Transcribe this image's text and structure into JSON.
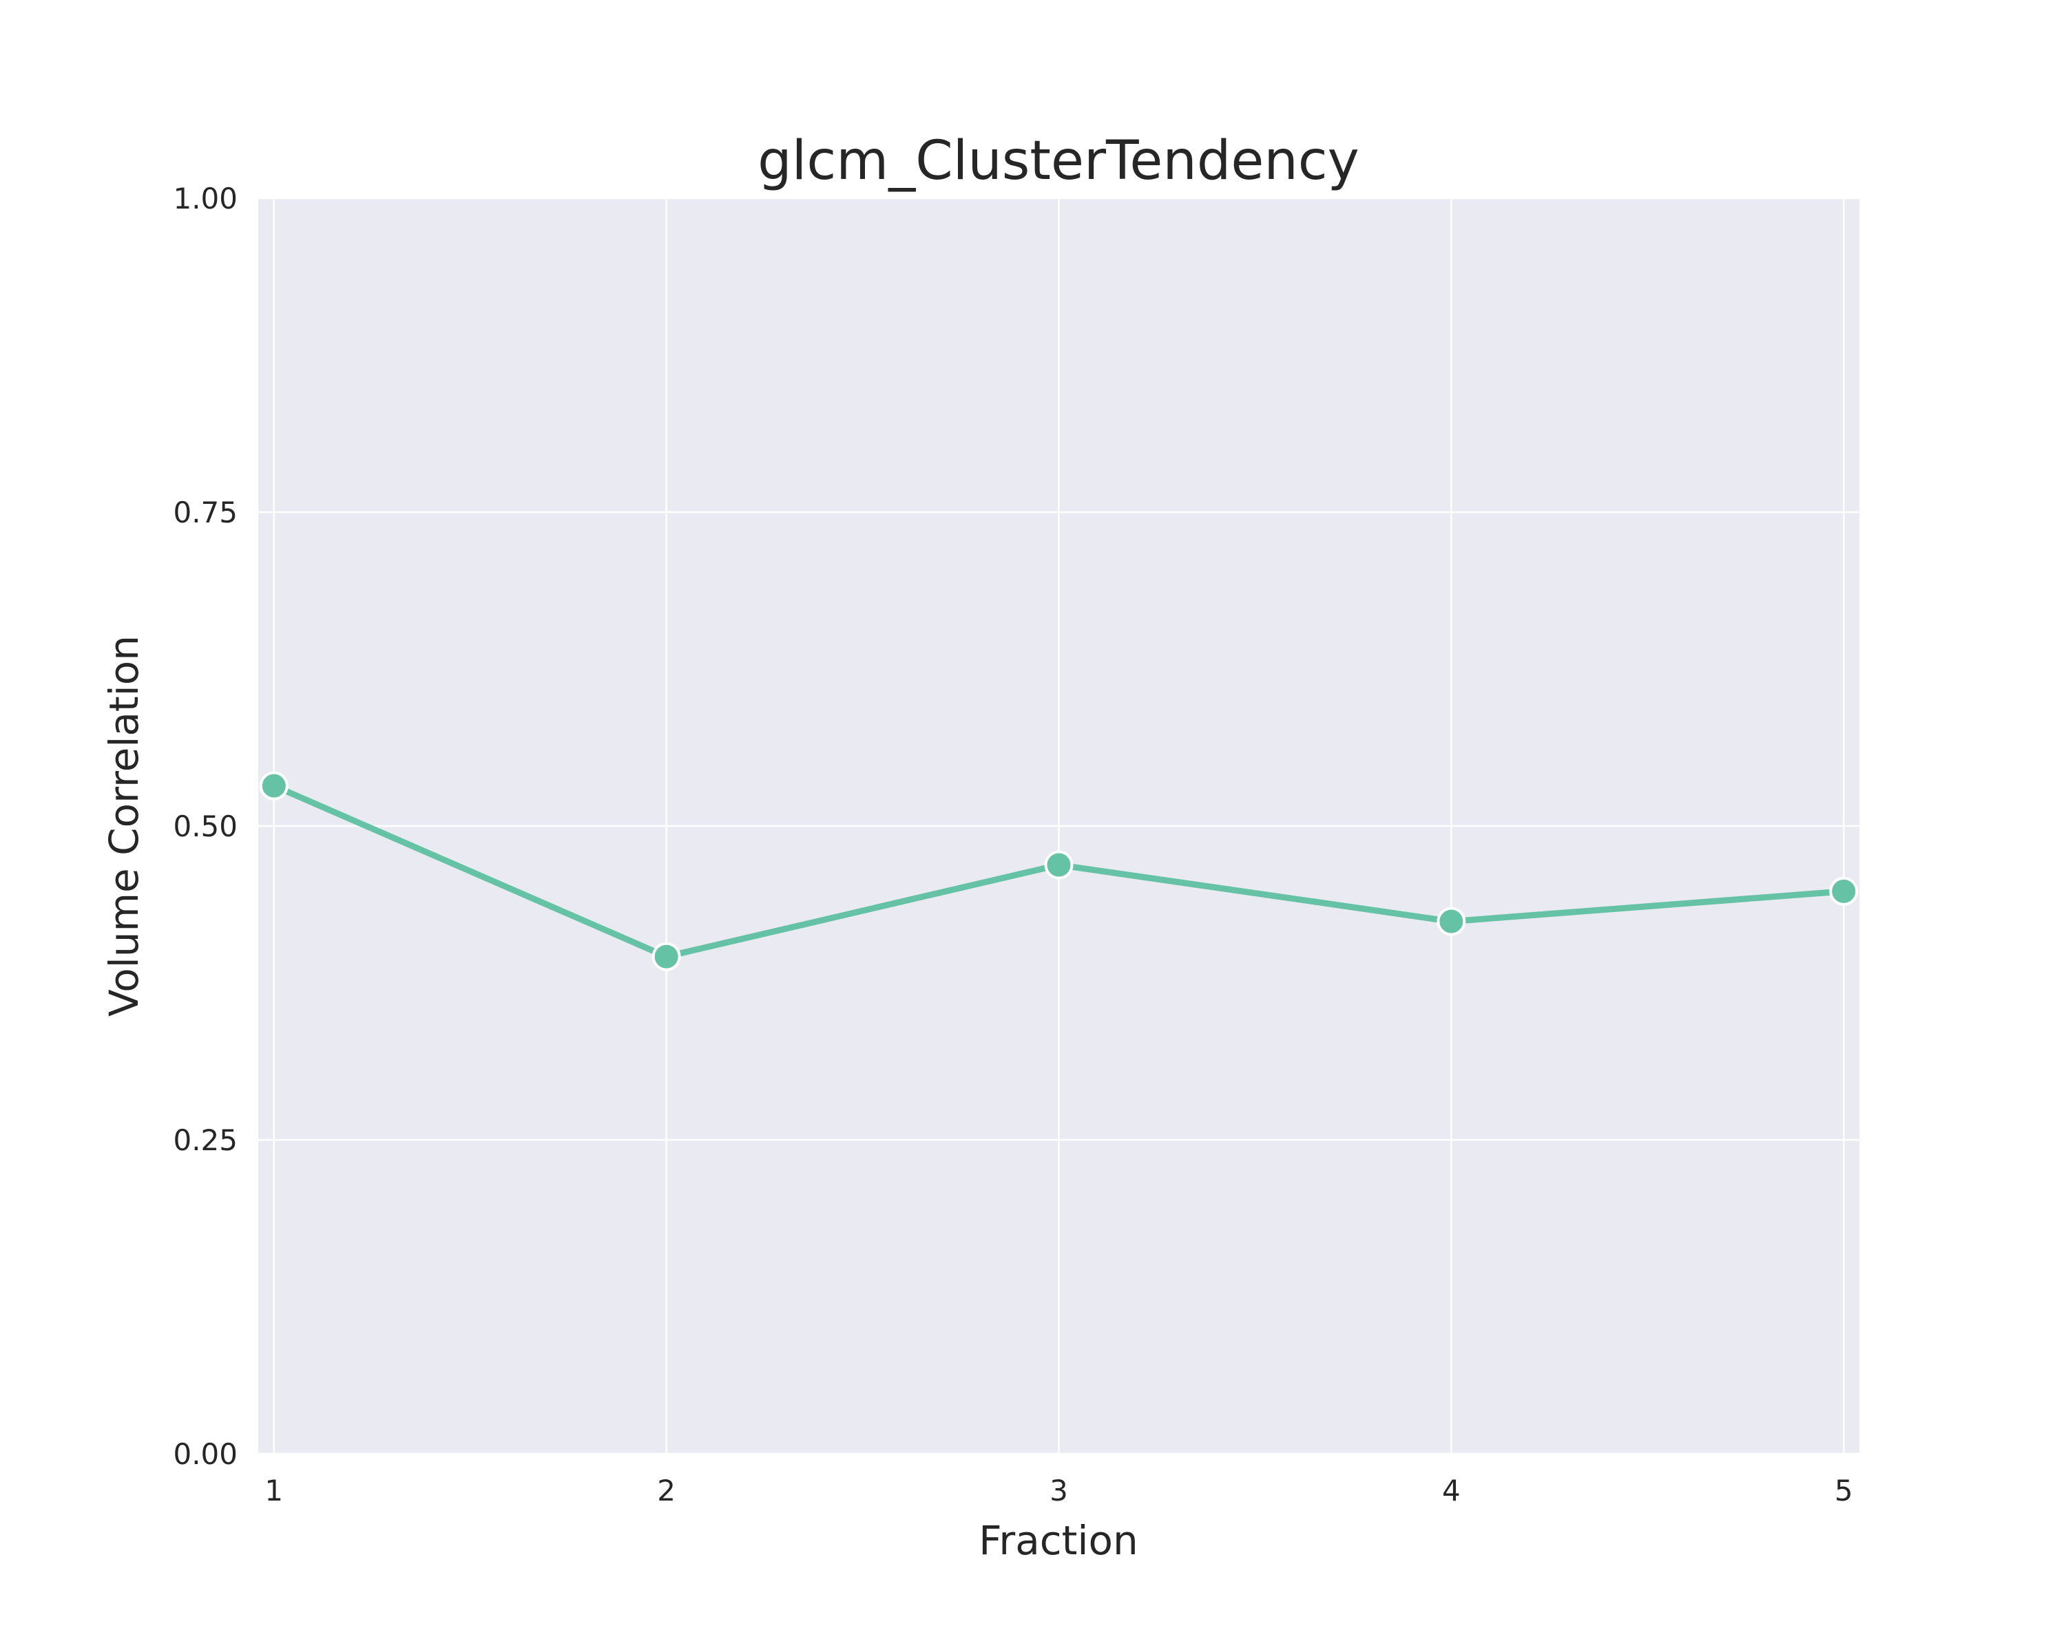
{
  "chart_data": {
    "type": "line",
    "title": "glcm_ClusterTendency",
    "xlabel": "Fraction",
    "ylabel": "Volume Correlation",
    "x": [
      1,
      2,
      3,
      4,
      5
    ],
    "x_tick_labels": [
      "1",
      "2",
      "3",
      "4",
      "5"
    ],
    "y_tick_values": [
      0,
      0.25,
      0.5,
      0.75,
      1
    ],
    "y_tick_labels": [
      "0.00",
      "0.25",
      "0.50",
      "0.75",
      "1.00"
    ],
    "ylim": [
      0,
      1
    ],
    "xlim": [
      0.96,
      5.04
    ],
    "grid": true,
    "series": [
      {
        "values": [
          0.532,
          0.396,
          0.469,
          0.424,
          0.448
        ],
        "color": "#66c2a5"
      }
    ],
    "colors": {
      "plot_background": "#eaeaf2",
      "grid": "#ffffff",
      "line": "#66c2a5",
      "marker_edge": "#ffffff",
      "text": "#262626"
    }
  }
}
